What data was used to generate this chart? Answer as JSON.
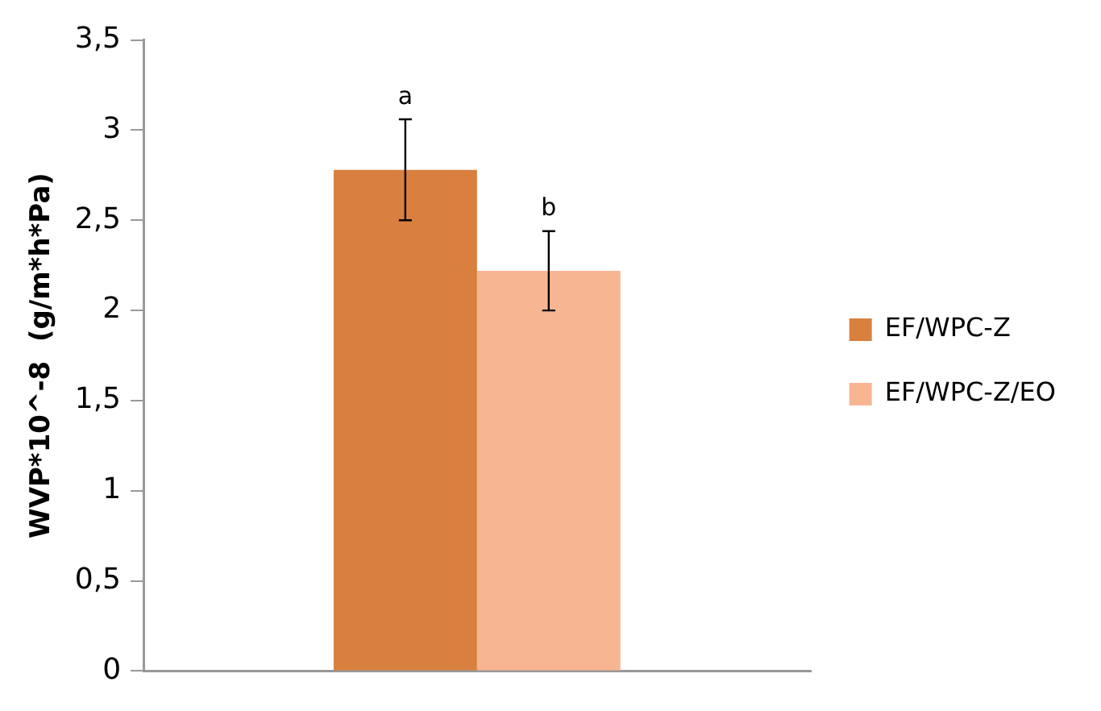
{
  "chart_data": {
    "type": "bar",
    "ylabel": "WVP*10^-8  (g/m*h*Pa)",
    "categories": [
      null
    ],
    "series": [
      {
        "name": "EF/WPC-Z",
        "color": "#d9803f",
        "values": [
          2.78
        ],
        "errors": [
          0.28
        ]
      },
      {
        "name": "EF/WPC-Z/EO",
        "color": "#f8b592",
        "values": [
          2.22
        ],
        "errors": [
          0.22
        ]
      }
    ],
    "annotations": [
      "a",
      "b"
    ],
    "ylim": [
      0,
      3.5
    ],
    "yticks": [
      0,
      {
        "value": 0.5,
        "label": "0,5"
      },
      1,
      {
        "value": 1.5,
        "label": "1,5"
      },
      2,
      {
        "value": 2.5,
        "label": "2,5"
      },
      3,
      {
        "value": 3.5,
        "label": "3,5"
      }
    ],
    "grid": false,
    "legend": "right"
  }
}
